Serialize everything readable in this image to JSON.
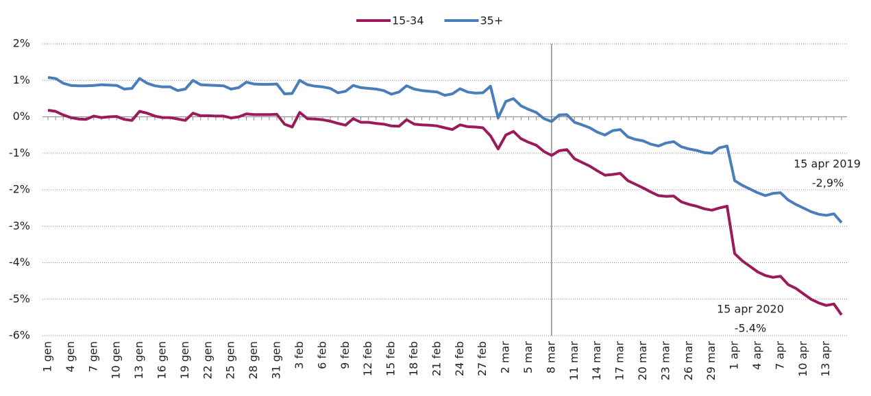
{
  "chart_data": {
    "type": "line",
    "categories": [
      "1 gen",
      null,
      null,
      "4 gen",
      null,
      null,
      "7 gen",
      null,
      null,
      "10 gen",
      null,
      null,
      "13 gen",
      null,
      null,
      "16 gen",
      null,
      null,
      "19 gen",
      null,
      null,
      "22 gen",
      null,
      null,
      "25 gen",
      null,
      null,
      "28 gen",
      null,
      null,
      "31 gen",
      null,
      null,
      "3 feb",
      null,
      null,
      "6 feb",
      null,
      null,
      "9 feb",
      null,
      null,
      "12 feb",
      null,
      null,
      "15 feb",
      null,
      null,
      "18 feb",
      null,
      null,
      "21 feb",
      null,
      null,
      "24 feb",
      null,
      null,
      "27 feb",
      null,
      null,
      "2 mar",
      null,
      null,
      "5 mar",
      null,
      null,
      "8 mar",
      null,
      null,
      "11 mar",
      null,
      null,
      "14 mar",
      null,
      null,
      "17 mar",
      null,
      null,
      "20 mar",
      null,
      null,
      "23 mar",
      null,
      null,
      "26 mar",
      null,
      null,
      "29 mar",
      null,
      null,
      "1 apr",
      null,
      null,
      "4 apr",
      null,
      null,
      "7 apr",
      null,
      null,
      "10 apr",
      null,
      null,
      "13 apr",
      null,
      null
    ],
    "series": [
      {
        "name": "15-34",
        "color": "#9b1b5a",
        "values": [
          0.18,
          0.15,
          0.05,
          -0.02,
          -0.06,
          -0.07,
          0.02,
          -0.02,
          0.0,
          0.01,
          -0.07,
          -0.1,
          0.15,
          0.1,
          0.02,
          -0.02,
          -0.02,
          -0.06,
          -0.1,
          0.1,
          0.03,
          0.03,
          0.02,
          0.02,
          -0.03,
          0.0,
          0.08,
          0.06,
          0.06,
          0.06,
          0.07,
          -0.2,
          -0.28,
          0.12,
          -0.05,
          -0.06,
          -0.08,
          -0.12,
          -0.18,
          -0.23,
          -0.05,
          -0.15,
          -0.15,
          -0.18,
          -0.2,
          -0.25,
          -0.26,
          -0.08,
          -0.2,
          -0.22,
          -0.23,
          -0.25,
          -0.3,
          -0.35,
          -0.22,
          -0.27,
          -0.28,
          -0.3,
          -0.52,
          -0.88,
          -0.5,
          -0.4,
          -0.6,
          -0.7,
          -0.78,
          -0.95,
          -1.06,
          -0.93,
          -0.9,
          -1.15,
          -1.25,
          -1.35,
          -1.48,
          -1.6,
          -1.58,
          -1.55,
          -1.75,
          -1.85,
          -1.95,
          -2.06,
          -2.16,
          -2.18,
          -2.17,
          -2.33,
          -2.4,
          -2.45,
          -2.52,
          -2.56,
          -2.5,
          -2.45,
          -3.75,
          -3.95,
          -4.1,
          -4.25,
          -4.35,
          -4.4,
          -4.37,
          -4.6,
          -4.7,
          -4.85,
          -5.0,
          -5.1,
          -5.17,
          -5.13,
          -5.43
        ]
      },
      {
        "name": "35+",
        "color": "#4a7ebb",
        "values": [
          1.08,
          1.05,
          0.92,
          0.86,
          0.85,
          0.85,
          0.86,
          0.88,
          0.87,
          0.86,
          0.76,
          0.78,
          1.05,
          0.92,
          0.85,
          0.82,
          0.82,
          0.72,
          0.76,
          1.0,
          0.88,
          0.87,
          0.86,
          0.85,
          0.76,
          0.8,
          0.95,
          0.9,
          0.89,
          0.89,
          0.9,
          0.63,
          0.64,
          1.0,
          0.88,
          0.84,
          0.82,
          0.78,
          0.66,
          0.7,
          0.86,
          0.8,
          0.78,
          0.76,
          0.72,
          0.62,
          0.68,
          0.85,
          0.76,
          0.72,
          0.7,
          0.68,
          0.59,
          0.63,
          0.77,
          0.68,
          0.65,
          0.66,
          0.84,
          -0.03,
          0.42,
          0.5,
          0.3,
          0.2,
          0.12,
          -0.05,
          -0.13,
          0.05,
          0.06,
          -0.15,
          -0.22,
          -0.3,
          -0.42,
          -0.5,
          -0.38,
          -0.35,
          -0.55,
          -0.62,
          -0.66,
          -0.75,
          -0.8,
          -0.72,
          -0.68,
          -0.82,
          -0.88,
          -0.92,
          -0.98,
          -1.0,
          -0.85,
          -0.8,
          -1.75,
          -1.88,
          -1.98,
          -2.08,
          -2.16,
          -2.1,
          -2.08,
          -2.28,
          -2.4,
          -2.5,
          -2.6,
          -2.67,
          -2.7,
          -2.66,
          -2.9
        ]
      }
    ],
    "ylim": [
      -6,
      2
    ],
    "yticks": [
      {
        "value": 2,
        "label": "2%"
      },
      {
        "value": 1,
        "label": "1%"
      },
      {
        "value": 0,
        "label": "0%"
      },
      {
        "value": -1,
        "label": "-1%"
      },
      {
        "value": -2,
        "label": "-2%"
      },
      {
        "value": -3,
        "label": "-3%"
      },
      {
        "value": -4,
        "label": "-4%"
      },
      {
        "value": -5,
        "label": "-5%"
      },
      {
        "value": -6,
        "label": "-6%"
      }
    ],
    "grid": true,
    "legend": "top",
    "vline": "8 mar",
    "annotations": [
      {
        "text": "15 apr 2019",
        "value_text": "-2,9%"
      },
      {
        "text": "15 apr 2020",
        "value_text": "-5.4%"
      }
    ]
  }
}
